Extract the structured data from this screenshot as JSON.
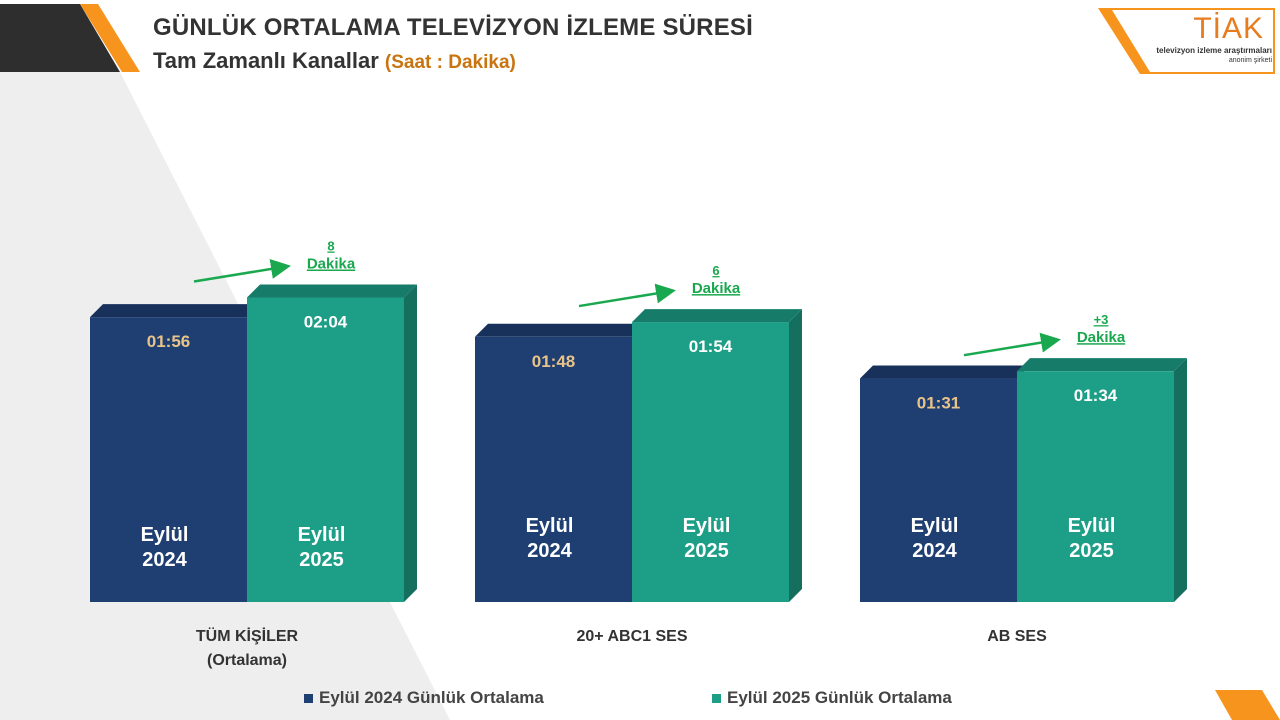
{
  "header": {
    "title": "GÜNLÜK ORTALAMA TELEVİZYON İZLEME SÜRESİ",
    "subtitle": "Tam Zamanlı Kanallar",
    "unit": "(Saat : Dakika)"
  },
  "logo": {
    "text": "TİAK",
    "line1": "televizyon izleme araştırmaları",
    "line2": "anonim şirketi"
  },
  "colors": {
    "bar_2024": "#1f3f73",
    "bar_2025": "#1d9e87",
    "value_2024": "#e9c48a",
    "value_2025": "#ffffff",
    "change": "#1aa84f",
    "accent": "#f7941d"
  },
  "legend": {
    "items": [
      {
        "label": "Eylül 2024 Günlük Ortalama",
        "color": "#1f3f73"
      },
      {
        "label": "Eylül 2025 Günlük Ortalama",
        "color": "#1d9e87"
      }
    ]
  },
  "chart_data": {
    "type": "bar",
    "value_format": "H:MM",
    "ylim": [
      0,
      180
    ],
    "categories": [
      "TÜM KİŞİLER\n(Ortalama)",
      "20+ ABC1 SES",
      "AB SES"
    ],
    "series": [
      {
        "name": "Eylül 2024 Günlük Ortalama",
        "bar_label": "Eylül\n2024",
        "values_minutes": [
          116,
          108,
          91
        ],
        "labels": [
          "01:56",
          "01:48",
          "01:31"
        ]
      },
      {
        "name": "Eylül 2025 Günlük Ortalama",
        "bar_label": "Eylül\n2025",
        "values_minutes": [
          124,
          114,
          94
        ],
        "labels": [
          "02:04",
          "01:54",
          "01:34"
        ]
      }
    ],
    "changes": [
      {
        "value": "8",
        "unit": "Dakika"
      },
      {
        "value": "6",
        "unit": "Dakika"
      },
      {
        "value": "+3",
        "unit": "Dakika"
      }
    ]
  }
}
